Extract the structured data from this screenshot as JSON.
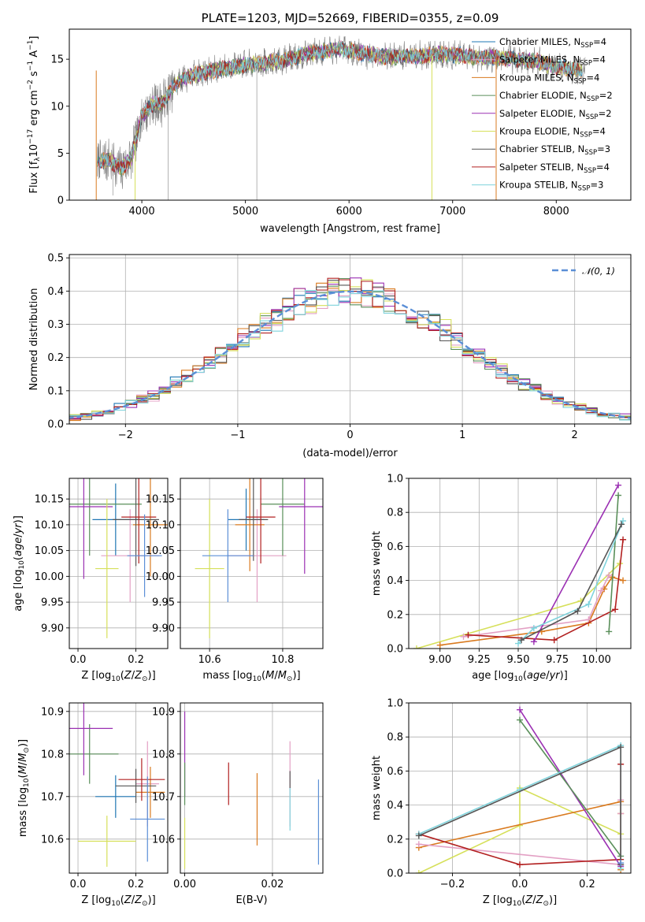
{
  "chart_data": [
    {
      "id": "spectrum",
      "type": "line",
      "title": "PLATE=1203, MJD=52669, FIBERID=0355, z=0.09",
      "xlabel": "wavelength [Angstrom, rest frame]",
      "ylabel": "Flux [f_λ10^-17 erg cm^-2 s^-1 A^-1]",
      "xlim": [
        3300,
        8720
      ],
      "ylim": [
        0,
        18.2
      ],
      "xticks": [
        4000,
        5000,
        6000,
        7000,
        8000
      ],
      "yticks": [
        0,
        5,
        10,
        15
      ],
      "legend_position": "upper right",
      "grid": false,
      "continuum_x": [
        3570,
        3680,
        3800,
        3900,
        4000,
        4100,
        4200,
        4300,
        4400,
        4600,
        4800,
        5000,
        5200,
        5400,
        5600,
        5800,
        5900,
        6000,
        6200,
        6400,
        6600,
        6800,
        7000,
        7200,
        7400,
        7600,
        7800,
        8000,
        8200
      ],
      "continuum_y": [
        4.0,
        4.3,
        3.3,
        4.5,
        9.0,
        10.2,
        10.3,
        12.0,
        13.0,
        13.6,
        14.0,
        14.4,
        14.6,
        15.0,
        15.6,
        15.9,
        16.1,
        15.9,
        15.5,
        15.2,
        15.3,
        15.5,
        15.5,
        15.2,
        15.2,
        15.0,
        14.8,
        14.2,
        13.8
      ],
      "series": [
        {
          "name": "Chabrier MILES, N_SSP=4",
          "label": "Chabrier MILES, N",
          "sub": "SSP",
          "suffix": "=4",
          "color": "#1f77b4"
        },
        {
          "name": "Salpeter MILES, N_SSP=4",
          "label": "Salpeter MILES, N",
          "sub": "SSP",
          "suffix": "=4",
          "color": "#e3a0c4"
        },
        {
          "name": "Kroupa MILES, N_SSP=4",
          "label": "Kroupa MILES, N",
          "sub": "SSP",
          "suffix": "=4",
          "color": "#d97a1f"
        },
        {
          "name": "Chabrier ELODIE, N_SSP=2",
          "label": "Chabrier ELODIE, N",
          "sub": "SSP",
          "suffix": "=2",
          "color": "#5a8f5a"
        },
        {
          "name": "Salpeter ELODIE, N_SSP=2",
          "label": "Salpeter ELODIE, N",
          "sub": "SSP",
          "suffix": "=2",
          "color": "#9b30b3"
        },
        {
          "name": "Kroupa ELODIE, N_SSP=4",
          "label": "Kroupa ELODIE, N",
          "sub": "SSP",
          "suffix": "=4",
          "color": "#d6e05a"
        },
        {
          "name": "Chabrier STELIB, N_SSP=3",
          "label": "Chabrier STELIB, N",
          "sub": "SSP",
          "suffix": "=3",
          "color": "#555555"
        },
        {
          "name": "Salpeter STELIB, N_SSP=4",
          "label": "Salpeter STELIB, N",
          "sub": "SSP",
          "suffix": "=4",
          "color": "#b22020"
        },
        {
          "name": "Kroupa STELIB, N_SSP=3",
          "label": "Kroupa STELIB, N",
          "sub": "SSP",
          "suffix": "=3",
          "color": "#7fd3dc"
        }
      ]
    },
    {
      "id": "residuals",
      "type": "line",
      "title": "",
      "xlabel": "(data-model)/error",
      "ylabel": "Normed distribution",
      "xlim": [
        -2.5,
        2.5
      ],
      "ylim": [
        0,
        0.51
      ],
      "xticks": [
        -2,
        -1,
        0,
        1,
        2
      ],
      "yticks": [
        0.0,
        0.1,
        0.2,
        0.3,
        0.4,
        0.5
      ],
      "grid": true,
      "legend_position": "upper right",
      "reference_curve": {
        "name": "𝒩(0, 1)",
        "color": "#5b8fd6",
        "style": "dashed"
      },
      "bin_width": 0.1,
      "histogram_colors": [
        "#1f77b4",
        "#e3a0c4",
        "#d97a1f",
        "#5a8f5a",
        "#9b30b3",
        "#d6e05a",
        "#555555",
        "#b22020",
        "#7fd3dc"
      ]
    },
    {
      "id": "age-vs-Z",
      "type": "scatter",
      "xlabel": "Z [log10(Z/Z☉)]",
      "ylabel": "age [log10(age/yr)]",
      "xlim": [
        -0.03,
        0.31
      ],
      "ylim": [
        9.86,
        10.19
      ],
      "xticks": [
        0.0,
        0.2
      ],
      "yticks": [
        9.9,
        9.95,
        10.0,
        10.05,
        10.1,
        10.15
      ],
      "grid": true,
      "points": [
        {
          "x": 0.13,
          "y": 10.11,
          "xerr": 0.08,
          "yerr": 0.07,
          "color": "#1f77b4"
        },
        {
          "x": 0.18,
          "y": 10.04,
          "xerr": 0.1,
          "yerr": 0.09,
          "color": "#e3a0c4"
        },
        {
          "x": 0.25,
          "y": 10.1,
          "xerr": 0.06,
          "yerr": 0.1,
          "color": "#d97a1f"
        },
        {
          "x": 0.04,
          "y": 10.14,
          "xerr": 0.18,
          "yerr": 0.1,
          "color": "#5a8f5a"
        },
        {
          "x": 0.02,
          "y": 10.135,
          "xerr": 0.1,
          "yerr": 0.14,
          "color": "#9b30b3"
        },
        {
          "x": 0.1,
          "y": 10.015,
          "xerr": 0.04,
          "yerr": 0.135,
          "color": "#d6e05a"
        },
        {
          "x": 0.2,
          "y": 10.11,
          "xerr": 0.08,
          "yerr": 0.09,
          "color": "#555555"
        },
        {
          "x": 0.21,
          "y": 10.115,
          "xerr": 0.06,
          "yerr": 0.09,
          "color": "#b22020"
        },
        {
          "x": 0.23,
          "y": 10.04,
          "xerr": 0.06,
          "yerr": 0.08,
          "color": "#5b8fd6"
        }
      ]
    },
    {
      "id": "age-vs-mass",
      "type": "scatter",
      "xlabel": "mass [log10(M/M☉)]",
      "ylabel": "",
      "xlim": [
        10.52,
        10.91
      ],
      "ylim": [
        9.86,
        10.19
      ],
      "xticks": [
        10.6,
        10.8
      ],
      "yticks": [
        9.9,
        9.95,
        10.0,
        10.05,
        10.1,
        10.15
      ],
      "grid": true,
      "points": [
        {
          "x": 10.7,
          "y": 10.11,
          "xerr": 0.05,
          "yerr": 0.06,
          "color": "#1f77b4"
        },
        {
          "x": 10.73,
          "y": 10.04,
          "xerr": 0.08,
          "yerr": 0.09,
          "color": "#e3a0c4"
        },
        {
          "x": 10.71,
          "y": 10.1,
          "xerr": 0.04,
          "yerr": 0.09,
          "color": "#d97a1f"
        },
        {
          "x": 10.8,
          "y": 10.14,
          "xerr": 0.06,
          "yerr": 0.1,
          "color": "#5a8f5a"
        },
        {
          "x": 10.86,
          "y": 10.135,
          "xerr": 0.07,
          "yerr": 0.13,
          "color": "#9b30b3"
        },
        {
          "x": 10.6,
          "y": 10.015,
          "xerr": 0.04,
          "yerr": 0.135,
          "color": "#d6e05a"
        },
        {
          "x": 10.72,
          "y": 10.11,
          "xerr": 0.04,
          "yerr": 0.08,
          "color": "#555555"
        },
        {
          "x": 10.74,
          "y": 10.115,
          "xerr": 0.04,
          "yerr": 0.09,
          "color": "#b22020"
        },
        {
          "x": 10.65,
          "y": 10.04,
          "xerr": 0.07,
          "yerr": 0.09,
          "color": "#5b8fd6"
        }
      ]
    },
    {
      "id": "weight-vs-age",
      "type": "line",
      "xlabel": "age [log10(age/yr)]",
      "ylabel": "mass weight",
      "xlim": [
        8.8,
        10.22
      ],
      "ylim": [
        0,
        1.0
      ],
      "xticks": [
        9.0,
        9.25,
        9.5,
        9.75,
        10.0
      ],
      "yticks": [
        0.0,
        0.2,
        0.4,
        0.6,
        0.8,
        1.0
      ],
      "grid": true,
      "series": [
        {
          "color": "#d6e05a",
          "x": [
            8.85,
            9.9,
            10.15
          ],
          "y": [
            0.0,
            0.28,
            0.5
          ]
        },
        {
          "color": "#d97a1f",
          "x": [
            9.0,
            9.65,
            9.95,
            10.05,
            10.1,
            10.17
          ],
          "y": [
            0.02,
            0.1,
            0.15,
            0.35,
            0.42,
            0.4
          ]
        },
        {
          "color": "#e3a0c4",
          "x": [
            9.15,
            9.95,
            10.03,
            10.08
          ],
          "y": [
            0.07,
            0.17,
            0.34,
            0.43
          ]
        },
        {
          "color": "#b22020",
          "x": [
            9.18,
            9.73,
            10.12,
            10.17
          ],
          "y": [
            0.08,
            0.05,
            0.23,
            0.64
          ]
        },
        {
          "color": "#9b30b3",
          "x": [
            9.6,
            10.14
          ],
          "y": [
            0.04,
            0.96
          ]
        },
        {
          "color": "#5a8f5a",
          "x": [
            10.08,
            10.14
          ],
          "y": [
            0.1,
            0.9
          ]
        },
        {
          "color": "#7fd3dc",
          "x": [
            9.5,
            9.6,
            9.95,
            10.17
          ],
          "y": [
            0.03,
            0.12,
            0.26,
            0.75
          ]
        },
        {
          "color": "#555555",
          "x": [
            9.52,
            9.88,
            10.16
          ],
          "y": [
            0.05,
            0.22,
            0.73
          ]
        }
      ]
    },
    {
      "id": "mass-vs-Z",
      "type": "scatter",
      "xlabel": "Z [log10(Z/Z☉)]",
      "ylabel": "mass [log10(M/M☉)]",
      "xlim": [
        -0.03,
        0.31
      ],
      "ylim": [
        10.52,
        10.92
      ],
      "xticks": [
        0.0,
        0.2
      ],
      "yticks": [
        10.6,
        10.7,
        10.8,
        10.9
      ],
      "grid": true,
      "points": [
        {
          "x": 0.13,
          "y": 10.7,
          "xerr": 0.07,
          "yerr": 0.05,
          "color": "#1f77b4"
        },
        {
          "x": 0.24,
          "y": 10.73,
          "xerr": 0.04,
          "yerr": 0.1,
          "color": "#e3a0c4"
        },
        {
          "x": 0.25,
          "y": 10.71,
          "xerr": 0.05,
          "yerr": 0.06,
          "color": "#d97a1f"
        },
        {
          "x": 0.04,
          "y": 10.8,
          "xerr": 0.1,
          "yerr": 0.07,
          "color": "#5a8f5a"
        },
        {
          "x": 0.02,
          "y": 10.86,
          "xerr": 0.1,
          "yerr": 0.11,
          "color": "#9b30b3"
        },
        {
          "x": 0.1,
          "y": 10.595,
          "xerr": 0.1,
          "yerr": 0.06,
          "color": "#d6e05a"
        },
        {
          "x": 0.2,
          "y": 10.725,
          "xerr": 0.07,
          "yerr": 0.04,
          "color": "#555555"
        },
        {
          "x": 0.22,
          "y": 10.74,
          "xerr": 0.08,
          "yerr": 0.05,
          "color": "#b22020"
        },
        {
          "x": 0.24,
          "y": 10.647,
          "xerr": 0.06,
          "yerr": 0.1,
          "color": "#5b8fd6"
        }
      ]
    },
    {
      "id": "mass-vs-ebv",
      "type": "scatter",
      "xlabel": "E(B-V)",
      "ylabel": "",
      "xlim": [
        -0.001,
        0.0315
      ],
      "ylim": [
        10.52,
        10.92
      ],
      "xticks": [
        0.0,
        0.02
      ],
      "yticks": [
        10.6,
        10.7,
        10.8,
        10.9
      ],
      "grid": true,
      "points": [
        {
          "x": 0.0,
          "y": 10.8,
          "yerr": 0.1,
          "color": "#9b30b3"
        },
        {
          "x": 0.0,
          "y": 10.59,
          "yerr": 0.06,
          "color": "#d6e05a"
        },
        {
          "x": 0.0,
          "y": 10.73,
          "yerr": 0.05,
          "color": "#5a8f5a"
        },
        {
          "x": 0.01,
          "y": 10.73,
          "yerr": 0.05,
          "color": "#b22020"
        },
        {
          "x": 0.0165,
          "y": 10.67,
          "yerr": 0.085,
          "color": "#d97a1f"
        },
        {
          "x": 0.024,
          "y": 10.73,
          "yerr": 0.1,
          "color": "#e3a0c4"
        },
        {
          "x": 0.024,
          "y": 10.74,
          "yerr": 0.02,
          "color": "#555555"
        },
        {
          "x": 0.024,
          "y": 10.67,
          "yerr": 0.05,
          "color": "#7fd3dc"
        },
        {
          "x": 0.0305,
          "y": 10.64,
          "yerr": 0.1,
          "color": "#5b8fd6"
        }
      ]
    },
    {
      "id": "weight-vs-Z",
      "type": "line",
      "xlabel": "Z [log10(Z/Z☉)]",
      "ylabel": "mass weight",
      "xlim": [
        -0.33,
        0.33
      ],
      "ylim": [
        0,
        1.0
      ],
      "xticks": [
        -0.2,
        0.0,
        0.2
      ],
      "yticks": [
        0.0,
        0.2,
        0.4,
        0.6,
        0.8,
        1.0
      ],
      "grid": true,
      "series": [
        {
          "color": "#d6e05a",
          "x": [
            -0.3,
            0.0,
            0.0,
            0.3
          ],
          "y": [
            0.0,
            0.28,
            0.5,
            0.23
          ]
        },
        {
          "color": "#d97a1f",
          "x": [
            -0.3,
            0.3,
            0.3,
            0.3
          ],
          "y": [
            0.15,
            0.42,
            0.35,
            0.02
          ]
        },
        {
          "color": "#e3a0c4",
          "x": [
            -0.3,
            0.3,
            0.3,
            0.3
          ],
          "y": [
            0.17,
            0.05,
            0.35,
            0.43
          ]
        },
        {
          "color": "#b22020",
          "x": [
            -0.3,
            0.0,
            0.3,
            0.3
          ],
          "y": [
            0.23,
            0.05,
            0.08,
            0.64
          ]
        },
        {
          "color": "#9b30b3",
          "x": [
            0.0,
            0.3
          ],
          "y": [
            0.96,
            0.04
          ]
        },
        {
          "color": "#5a8f5a",
          "x": [
            0.0,
            0.3
          ],
          "y": [
            0.9,
            0.1
          ]
        },
        {
          "color": "#7fd3dc",
          "x": [
            -0.3,
            0.0,
            0.3,
            0.3
          ],
          "y": [
            0.23,
            0.49,
            0.75,
            0.03
          ]
        },
        {
          "color": "#555555",
          "x": [
            -0.3,
            0.3,
            0.3
          ],
          "y": [
            0.22,
            0.74,
            0.05
          ]
        },
        {
          "color": "#5b8fd6",
          "x": [
            0.3
          ],
          "y": [
            0.06
          ]
        }
      ]
    }
  ]
}
